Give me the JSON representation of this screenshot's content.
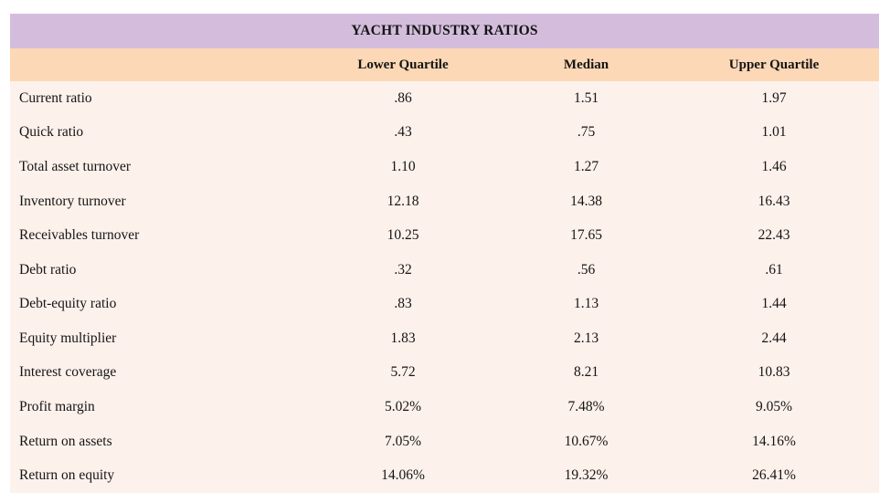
{
  "chart_data": {
    "type": "table",
    "title": "YACHT INDUSTRY RATIOS",
    "columns": [
      "",
      "Lower Quartile",
      "Median",
      "Upper Quartile"
    ],
    "rows": [
      [
        "Current ratio",
        ".86",
        "1.51",
        "1.97"
      ],
      [
        "Quick ratio",
        ".43",
        ".75",
        "1.01"
      ],
      [
        "Total asset turnover",
        "1.10",
        "1.27",
        "1.46"
      ],
      [
        "Inventory turnover",
        "12.18",
        "14.38",
        "16.43"
      ],
      [
        "Receivables turnover",
        "10.25",
        "17.65",
        "22.43"
      ],
      [
        "Debt ratio",
        ".32",
        ".56",
        ".61"
      ],
      [
        "Debt-equity ratio",
        ".83",
        "1.13",
        "1.44"
      ],
      [
        "Equity multiplier",
        "1.83",
        "2.13",
        "2.44"
      ],
      [
        "Interest coverage",
        "5.72",
        "8.21",
        "10.83"
      ],
      [
        "Profit margin",
        "5.02%",
        "7.48%",
        "9.05%"
      ],
      [
        "Return on assets",
        "7.05%",
        "10.67%",
        "14.16%"
      ],
      [
        "Return on equity",
        "14.06%",
        "19.32%",
        "26.41%"
      ]
    ],
    "layout": {
      "legend": "none",
      "grid": "off",
      "value_columns_alignment": "center",
      "label_column_alignment": "left"
    }
  },
  "colors": {
    "title_bg": "#d4bddc",
    "header_bg": "#fcd8b6",
    "body_bg": "#fdf1eb",
    "text_color": "#141414"
  }
}
